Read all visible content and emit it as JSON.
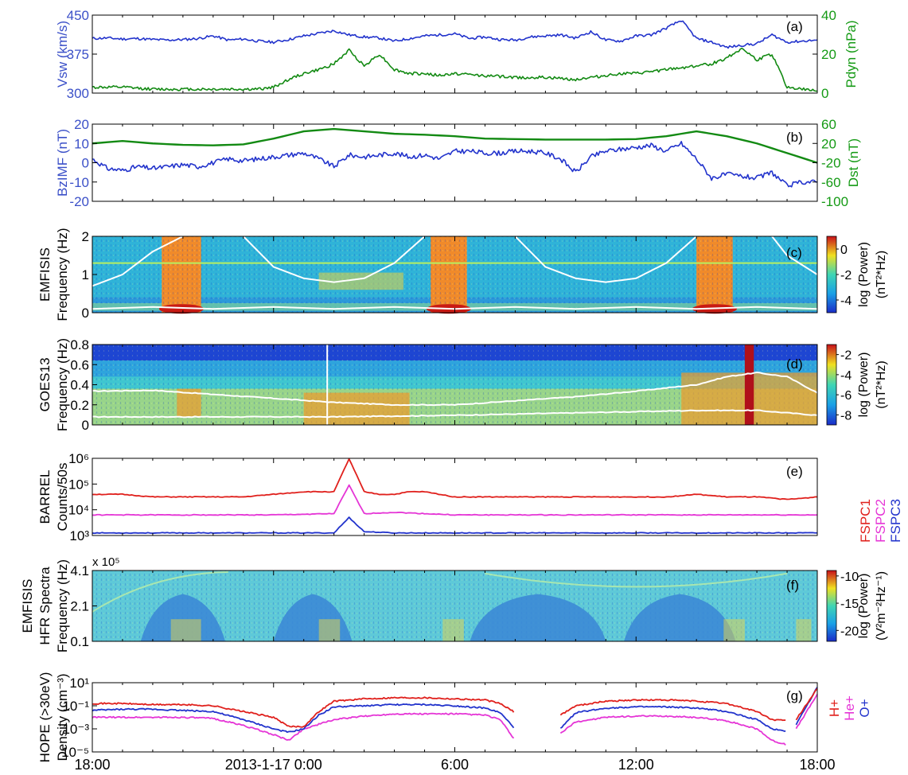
{
  "colors": {
    "blue": "#2233cc",
    "green": "#138a13",
    "red": "#e0201c",
    "magenta": "#e535d6",
    "white": "#ffffff",
    "axis_blue": "#3b50c8",
    "axis_green": "#149a14"
  },
  "x_axis": {
    "ticks": [
      "18:00",
      "2013-1-17 0:00",
      "6:00",
      "12:00",
      "18:00"
    ],
    "hours": [
      0,
      6,
      12,
      18,
      24
    ],
    "range_hours": [
      0,
      24
    ]
  },
  "chart_data": [
    {
      "panel": "(a)",
      "type": "line",
      "y_left": {
        "label": "Vsw (km/s)",
        "ticks": [
          "300",
          "375",
          "450"
        ],
        "range": [
          300,
          450
        ]
      },
      "y_right": {
        "label": "Pdyn (nPa)",
        "ticks": [
          "0",
          "20",
          "40"
        ],
        "range": [
          0,
          40
        ]
      },
      "series": [
        {
          "axis": "left",
          "color": "blue",
          "x": [
            0,
            0.5,
            1,
            1.5,
            2,
            2.5,
            3,
            3.5,
            4,
            4.5,
            5,
            5.5,
            6,
            6.5,
            7,
            7.5,
            8,
            8.5,
            9,
            9.5,
            10,
            10.5,
            11,
            11.5,
            12,
            12.5,
            13,
            13.5,
            14,
            14.5,
            15,
            15.5,
            16,
            16.5,
            17,
            17.5,
            18,
            18.5,
            19,
            19.5,
            20,
            20.5,
            21,
            21.5,
            22,
            22.5,
            23,
            23.5,
            24
          ],
          "y": [
            405,
            406,
            404,
            405,
            403,
            402,
            403,
            405,
            410,
            402,
            404,
            400,
            398,
            403,
            410,
            415,
            420,
            412,
            408,
            406,
            400,
            405,
            410,
            412,
            414,
            405,
            408,
            403,
            402,
            408,
            410,
            412,
            406,
            418,
            402,
            400,
            410,
            412,
            425,
            440,
            405,
            398,
            388,
            392,
            395,
            412,
            398,
            400,
            402
          ]
        },
        {
          "axis": "right",
          "color": "green",
          "x": [
            0,
            1,
            2,
            3,
            4,
            5,
            5.5,
            6,
            6.5,
            7,
            7.5,
            8,
            8.5,
            9,
            9.5,
            10,
            10.5,
            11,
            11.5,
            12,
            13,
            14,
            15,
            16,
            17,
            17.5,
            18,
            18.5,
            19,
            19.5,
            20,
            20.5,
            21,
            21.5,
            22,
            22.5,
            23,
            23.5,
            24
          ],
          "y": [
            3,
            3,
            2,
            2,
            2,
            2,
            2,
            3,
            7,
            10,
            12,
            15,
            22,
            14,
            20,
            12,
            10,
            10,
            9,
            10,
            9,
            8,
            8,
            7,
            9,
            10,
            10,
            11,
            12,
            13,
            14,
            15,
            18,
            23,
            17,
            20,
            3,
            2,
            1
          ]
        }
      ]
    },
    {
      "panel": "(b)",
      "type": "line",
      "y_left": {
        "label": "BzIMF (nT)",
        "ticks": [
          "-20",
          "-10",
          "0",
          "10",
          "20"
        ],
        "range": [
          -20,
          20
        ]
      },
      "y_right": {
        "label": "Dst (nT)",
        "ticks": [
          "-100",
          "-60",
          "-20",
          "20",
          "60"
        ],
        "range": [
          -100,
          60
        ]
      },
      "series": [
        {
          "axis": "left",
          "color": "blue",
          "x": [
            0,
            0.5,
            1,
            1.5,
            2,
            2.5,
            3,
            3.5,
            4,
            4.5,
            5,
            5.5,
            6,
            6.5,
            7,
            7.5,
            8,
            8.5,
            9,
            9.5,
            10,
            10.5,
            11,
            11.5,
            12,
            12.5,
            13,
            13.5,
            14,
            14.5,
            15,
            15.5,
            16,
            16.5,
            17,
            17.5,
            18,
            18.5,
            19,
            19.5,
            20,
            20.5,
            21,
            21.5,
            22,
            22.5,
            23,
            23.5,
            24
          ],
          "y": [
            2,
            -3,
            -4,
            -2,
            -3,
            -2,
            -1,
            -2,
            0,
            2,
            1,
            2,
            3,
            4,
            5,
            2,
            -2,
            4,
            3,
            4,
            5,
            3,
            4,
            2,
            6,
            6,
            5,
            5,
            6,
            6,
            5,
            2,
            -5,
            3,
            6,
            7,
            8,
            9,
            6,
            10,
            2,
            -8,
            -6,
            -7,
            -8,
            -5,
            -12,
            -10,
            -10
          ]
        },
        {
          "axis": "right",
          "color": "green",
          "x": [
            0,
            1,
            2,
            3,
            4,
            5,
            6,
            7,
            8,
            9,
            10,
            11,
            12,
            13,
            14,
            15,
            16,
            17,
            18,
            19,
            20,
            21,
            22,
            23,
            24
          ],
          "y": [
            20,
            25,
            20,
            17,
            16,
            18,
            30,
            45,
            50,
            45,
            40,
            38,
            35,
            30,
            29,
            28,
            28,
            28,
            29,
            35,
            45,
            35,
            20,
            0,
            -20
          ]
        }
      ]
    },
    {
      "panel": "(c)",
      "type": "heatmap",
      "instrument": "EMFISIS",
      "y_label": "Frequency (Hz)",
      "y_ticks": [
        "0",
        "1",
        "2"
      ],
      "y_range": [
        0,
        2
      ],
      "colorbar": {
        "ticks": [
          "0",
          "-2",
          "-4"
        ],
        "label": "log (Power)",
        "unit": "(nT²*Hz)",
        "range": [
          -5,
          1
        ]
      },
      "bursts": [
        {
          "start": 2.3,
          "end": 3.6
        },
        {
          "start": 11.2,
          "end": 12.4
        },
        {
          "start": 20.0,
          "end": 21.2
        }
      ],
      "curves": [
        {
          "name": "upper",
          "x": [
            0,
            1,
            2,
            3
          ],
          "y": [
            0.7,
            1.0,
            1.6,
            2.0
          ]
        },
        {
          "name": "upper",
          "x": [
            5,
            6,
            7,
            8,
            9,
            10,
            11
          ],
          "y": [
            2.0,
            1.2,
            0.9,
            0.8,
            0.9,
            1.3,
            2.0
          ]
        },
        {
          "name": "upper",
          "x": [
            14,
            15,
            16,
            17,
            18,
            19,
            20
          ],
          "y": [
            2.0,
            1.2,
            0.9,
            0.8,
            0.9,
            1.3,
            2.0
          ]
        },
        {
          "name": "upper",
          "x": [
            22.5,
            23,
            24
          ],
          "y": [
            2.0,
            1.5,
            1.0
          ]
        },
        {
          "name": "lower",
          "x": [
            0,
            2,
            4,
            6,
            8,
            10,
            12,
            14,
            16,
            18,
            20,
            22,
            24
          ],
          "y": [
            0.1,
            0.15,
            0.1,
            0.15,
            0.1,
            0.15,
            0.1,
            0.15,
            0.1,
            0.15,
            0.1,
            0.15,
            0.1
          ]
        }
      ],
      "line": {
        "x": [
          0,
          24
        ],
        "y": [
          1.3,
          1.3
        ]
      }
    },
    {
      "panel": "(d)",
      "type": "heatmap",
      "instrument": "GOES13",
      "y_label": "Frequency (Hz)",
      "y_ticks": [
        "0",
        "0.2",
        "0.4",
        "0.6",
        "0.8"
      ],
      "y_range": [
        0,
        1
      ],
      "colorbar": {
        "ticks": [
          "-2",
          "-4",
          "-6",
          "-8"
        ],
        "label": "log (Power)",
        "unit": "(nT²*Hz)",
        "range": [
          -9,
          -1
        ]
      },
      "curves": [
        {
          "name": "upper",
          "x": [
            0,
            2,
            4,
            6,
            8,
            10,
            12,
            14,
            16,
            18,
            20,
            21,
            22,
            23,
            24
          ],
          "y": [
            0.42,
            0.43,
            0.38,
            0.33,
            0.28,
            0.25,
            0.25,
            0.3,
            0.35,
            0.42,
            0.5,
            0.6,
            0.65,
            0.6,
            0.4
          ]
        },
        {
          "name": "lower",
          "x": [
            0,
            4,
            8,
            12,
            16,
            20,
            22,
            24
          ],
          "y": [
            0.1,
            0.1,
            0.1,
            0.12,
            0.15,
            0.18,
            0.18,
            0.12
          ]
        }
      ]
    },
    {
      "panel": "(e)",
      "type": "line",
      "instrument": "BARREL",
      "y_label": "Counts/50s",
      "y_ticks": [
        "10³",
        "10⁴",
        "10⁵",
        "10⁶"
      ],
      "y_log_range": [
        3,
        6
      ],
      "series": [
        {
          "name": "FSPC1",
          "color": "red",
          "x": [
            0,
            1,
            2,
            3,
            4,
            5,
            6,
            7,
            8,
            8.5,
            9,
            9.5,
            10,
            10.5,
            11,
            12,
            13,
            14,
            15,
            16,
            17,
            18,
            19,
            20,
            21,
            22,
            23,
            24
          ],
          "y_log": [
            4.6,
            4.6,
            4.5,
            4.5,
            4.5,
            4.5,
            4.6,
            4.7,
            4.7,
            5.98,
            4.7,
            4.6,
            4.6,
            4.7,
            4.7,
            4.5,
            4.5,
            4.5,
            4.5,
            4.5,
            4.5,
            4.5,
            4.5,
            4.6,
            4.5,
            4.5,
            4.4,
            4.5
          ]
        },
        {
          "name": "FSPC2",
          "color": "magenta",
          "x": [
            0,
            2,
            4,
            6,
            8,
            8.5,
            9,
            10,
            11,
            12,
            14,
            16,
            18,
            20,
            22,
            24
          ],
          "y_log": [
            3.8,
            3.8,
            3.8,
            3.8,
            3.85,
            4.95,
            3.85,
            3.9,
            3.85,
            3.8,
            3.8,
            3.8,
            3.8,
            3.8,
            3.8,
            3.8
          ]
        },
        {
          "name": "FSPC3",
          "color": "blue",
          "x": [
            0,
            2,
            4,
            6,
            8,
            8.5,
            9,
            10,
            12,
            14,
            16,
            18,
            20,
            22,
            24
          ],
          "y_log": [
            3.1,
            3.1,
            3.1,
            3.1,
            3.1,
            3.7,
            3.15,
            3.1,
            3.1,
            3.1,
            3.1,
            3.1,
            3.1,
            3.1,
            3.1
          ]
        }
      ]
    },
    {
      "panel": "(f)",
      "type": "heatmap",
      "instrument": "EMFISIS",
      "y_label_1": "HFR Spectra",
      "y_label": "Frequency (Hz)",
      "y_exponent": "x 10⁵",
      "y_ticks": [
        "0.1",
        "2.1",
        "4.1"
      ],
      "y_range": [
        0,
        4.8
      ],
      "colorbar": {
        "ticks": [
          "-10",
          "-15",
          "-20"
        ],
        "label": "log (Power)",
        "unit": "(V²m⁻²Hz⁻¹)",
        "range": [
          -22,
          -9
        ]
      }
    },
    {
      "panel": "(g)",
      "type": "line",
      "instrument": "HOPE (>30eV)",
      "y_label": "Density (cm⁻³)",
      "y_ticks": [
        "10⁻⁵",
        "10⁻³",
        "10⁻¹",
        "10¹"
      ],
      "y_log_range": [
        -5,
        1
      ],
      "series": [
        {
          "name": "H+",
          "color": "red",
          "x": [
            0,
            1,
            2,
            3,
            4,
            5,
            6,
            6.5,
            7,
            7.5,
            8,
            9,
            10,
            11,
            12,
            13,
            13.5,
            14,
            null,
            15.5,
            16,
            17,
            18,
            19,
            20,
            21,
            22,
            22.5,
            23,
            null,
            23.3,
            24
          ],
          "y_log": [
            -0.8,
            -0.8,
            -0.9,
            -0.9,
            -1.0,
            -1.5,
            -2.0,
            -2.8,
            -2.8,
            -1.5,
            -0.6,
            -0.4,
            -0.3,
            -0.3,
            -0.4,
            -0.5,
            -0.8,
            -1.6,
            null,
            -1.8,
            -1.0,
            -0.6,
            -0.5,
            -0.5,
            -0.6,
            -0.8,
            -1.5,
            -2.2,
            -2.3,
            null,
            -2.2,
            0.5
          ]
        },
        {
          "name": "He+",
          "color": "magenta",
          "x": [
            0,
            1,
            2,
            3,
            4,
            5,
            6,
            6.5,
            7,
            7.5,
            8,
            9,
            10,
            11,
            12,
            13,
            13.5,
            14,
            null,
            15.5,
            16,
            17,
            18,
            19,
            20,
            21,
            22,
            22.5,
            23,
            null,
            23.3,
            24
          ],
          "y_log": [
            -2.0,
            -2.0,
            -2.0,
            -2.0,
            -2.1,
            -2.7,
            -3.5,
            -4.0,
            -3.0,
            -2.6,
            -2.2,
            -1.9,
            -1.7,
            -1.7,
            -1.7,
            -1.8,
            -2.2,
            -4.0,
            null,
            -3.4,
            -2.4,
            -2.0,
            -1.9,
            -1.9,
            -2.0,
            -2.3,
            -3.0,
            -4.0,
            -4.4,
            null,
            -3.0,
            0.0
          ]
        },
        {
          "name": "O+",
          "color": "blue",
          "x": [
            0,
            1,
            2,
            3,
            4,
            5,
            6,
            6.5,
            7,
            7.5,
            8,
            9,
            10,
            11,
            12,
            13,
            13.5,
            14,
            null,
            15.5,
            16,
            17,
            18,
            19,
            20,
            21,
            22,
            22.5,
            23,
            null,
            23.3,
            24
          ],
          "y_log": [
            -1.4,
            -1.3,
            -1.3,
            -1.4,
            -1.5,
            -2.2,
            -3.0,
            -3.3,
            -3.0,
            -1.8,
            -1.1,
            -1.0,
            -0.9,
            -0.9,
            -1.0,
            -1.2,
            -1.6,
            -3.0,
            null,
            -3.0,
            -1.6,
            -1.2,
            -1.1,
            -1.1,
            -1.2,
            -1.5,
            -2.2,
            -3.0,
            -3.2,
            null,
            -2.6,
            0.6
          ]
        }
      ]
    }
  ],
  "ion_labels": [
    "H+",
    "He+",
    "O+"
  ]
}
